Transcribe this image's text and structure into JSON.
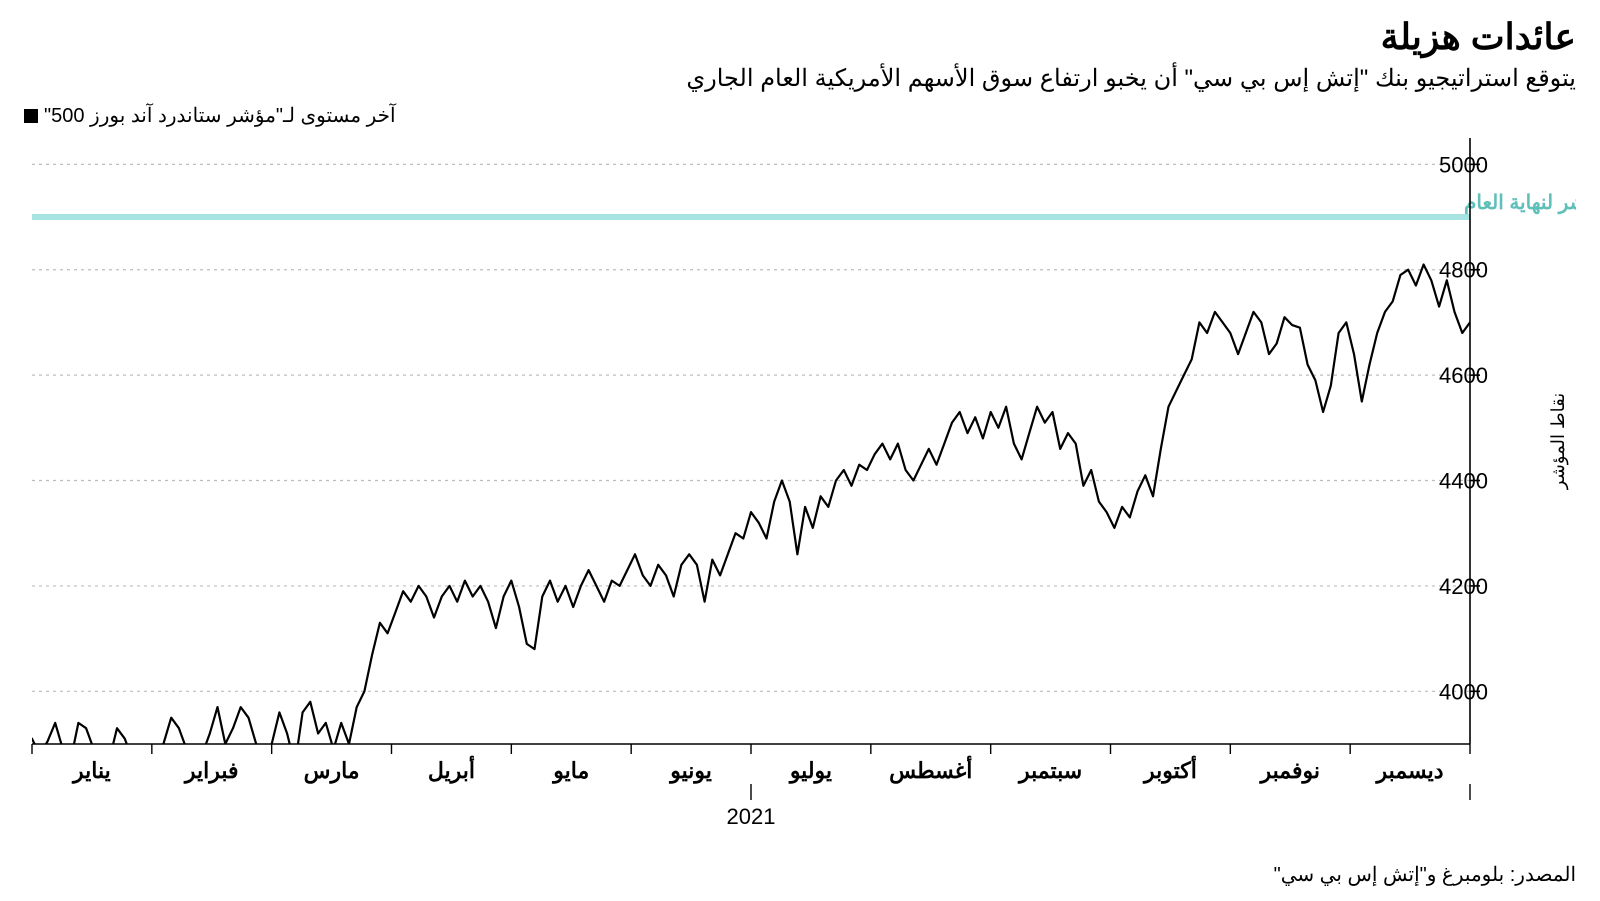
{
  "header": {
    "title": "عائدات هزيلة",
    "subtitle": "يتوقع استراتيجيو بنك \"إتش إس بي سي\" أن يخبو ارتفاع سوق الأسهم الأمريكية العام الجاري",
    "legend_label": "آخر مستوى لـ\"مؤشر ستاندرد آند بورز 500\"",
    "legend_marker_color": "#000000"
  },
  "chart": {
    "type": "line",
    "background_color": "#ffffff",
    "line_color": "#000000",
    "line_width": 2.2,
    "grid_color": "#bdbdbd",
    "grid_dash": "3 4",
    "axis_color": "#000000",
    "ylim": [
      3900,
      5050
    ],
    "yticks": [
      4000,
      4200,
      4400,
      4600,
      4800,
      5000
    ],
    "y_tick_len": 10,
    "y_axis_title": "نقاط المؤشر",
    "forecast_line": {
      "value": 4900,
      "color": "#a7e3e0",
      "width": 6,
      "label": "توقعات البنك لمستوى المؤشر لنهاية العام",
      "label_color": "#5fbfb9"
    },
    "x_months": [
      "يناير",
      "فبراير",
      "مارس",
      "أبريل",
      "مايو",
      "يونيو",
      "يوليو",
      "أغسطس",
      "سبتمبر",
      "أكتوبر",
      "نوفمبر",
      "ديسمبر"
    ],
    "x_year": "2021",
    "series": [
      3910,
      3880,
      3905,
      3940,
      3890,
      3870,
      3940,
      3930,
      3890,
      3860,
      3870,
      3930,
      3910,
      3870,
      3880,
      3870,
      3880,
      3900,
      3950,
      3930,
      3890,
      3870,
      3880,
      3920,
      3970,
      3900,
      3930,
      3970,
      3950,
      3900,
      3870,
      3900,
      3960,
      3920,
      3860,
      3960,
      3980,
      3920,
      3940,
      3890,
      3940,
      3900,
      3970,
      4000,
      4070,
      4130,
      4110,
      4150,
      4190,
      4170,
      4200,
      4180,
      4140,
      4180,
      4200,
      4170,
      4210,
      4180,
      4200,
      4170,
      4120,
      4180,
      4210,
      4160,
      4090,
      4080,
      4180,
      4210,
      4170,
      4200,
      4160,
      4200,
      4230,
      4200,
      4170,
      4210,
      4200,
      4230,
      4260,
      4220,
      4200,
      4240,
      4220,
      4180,
      4240,
      4260,
      4240,
      4170,
      4250,
      4220,
      4260,
      4300,
      4290,
      4340,
      4320,
      4290,
      4360,
      4400,
      4360,
      4260,
      4350,
      4310,
      4370,
      4350,
      4400,
      4420,
      4390,
      4430,
      4420,
      4450,
      4470,
      4440,
      4470,
      4420,
      4400,
      4430,
      4460,
      4430,
      4470,
      4510,
      4530,
      4490,
      4520,
      4480,
      4530,
      4500,
      4540,
      4470,
      4440,
      4490,
      4540,
      4510,
      4530,
      4460,
      4490,
      4470,
      4390,
      4420,
      4360,
      4340,
      4310,
      4350,
      4330,
      4380,
      4410,
      4370,
      4460,
      4540,
      4570,
      4600,
      4630,
      4700,
      4680,
      4720,
      4700,
      4680,
      4640,
      4680,
      4720,
      4700,
      4640,
      4660,
      4710,
      4695,
      4690,
      4620,
      4590,
      4530,
      4580,
      4680,
      4700,
      4640,
      4550,
      4620,
      4680,
      4720,
      4740,
      4790,
      4800,
      4770,
      4810,
      4780,
      4730,
      4780,
      4720,
      4680,
      4700
    ]
  },
  "footer": {
    "source": "المصدر: بلومبرغ و\"إتش إس بي سي\""
  }
}
